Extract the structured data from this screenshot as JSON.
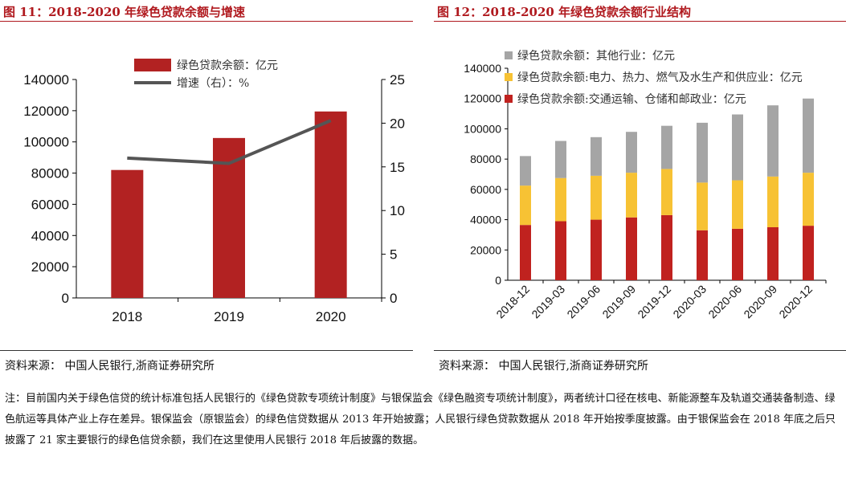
{
  "chart_data": [
    {
      "type": "bar+line",
      "title": "图 11：2018-2020 年绿色贷款余额与增速",
      "categories": [
        "2018",
        "2019",
        "2020"
      ],
      "series": [
        {
          "name": "绿色贷款余额：亿元",
          "kind": "bar",
          "axis": "left",
          "color": "#b22222",
          "values": [
            82000,
            102500,
            119500
          ]
        },
        {
          "name": "增速（右）：%",
          "kind": "line",
          "axis": "right",
          "color": "#555555",
          "values": [
            16,
            15.4,
            20.3
          ]
        }
      ],
      "ylim_left": [
        0,
        140000
      ],
      "yticks_left": [
        "0",
        "20000",
        "40000",
        "60000",
        "80000",
        "100000",
        "120000",
        "140000"
      ],
      "ylim_right": [
        0,
        25
      ],
      "yticks_right": [
        "0",
        "5",
        "10",
        "15",
        "20",
        "25"
      ],
      "legend_position": "top-center",
      "source": "资料来源：  中国人民银行,浙商证券研究所"
    },
    {
      "type": "stacked-bar",
      "title": "图 12：2018-2020 年绿色贷款余额行业结构",
      "categories": [
        "2018-12",
        "2019-03",
        "2019-06",
        "2019-09",
        "2019-12",
        "2020-03",
        "2020-06",
        "2020-09",
        "2020-12"
      ],
      "series": [
        {
          "name": "绿色贷款余额:交通运输、仓储和邮政业：亿元",
          "color": "#c0221f",
          "values": [
            36500,
            39000,
            40000,
            41500,
            43000,
            33000,
            34000,
            35000,
            36000
          ]
        },
        {
          "name": "绿色贷款余额:电力、热力、燃气及水生产和供应业：亿元",
          "color": "#f7c234",
          "values": [
            26000,
            28500,
            29000,
            29500,
            30500,
            31500,
            32000,
            33500,
            35000
          ]
        },
        {
          "name": "绿色贷款余额：其他行业：亿元",
          "color": "#a5a5a5",
          "values": [
            19500,
            24500,
            25500,
            27000,
            28500,
            39500,
            43500,
            47000,
            49000
          ]
        }
      ],
      "ylim": [
        0,
        140000
      ],
      "yticks": [
        "0",
        "20000",
        "40000",
        "60000",
        "80000",
        "100000",
        "120000",
        "140000"
      ],
      "legend_position": "top-left",
      "source": "资料来源：  中国人民银行,浙商证券研究所"
    }
  ],
  "note": "注：目前国内关于绿色信贷的统计标准包括人民银行的《绿色贷款专项统计制度》与银保监会《绿色融资专项统计制度》，两者统计口径在核电、新能源整车及轨道交通装备制造、绿色航运等具体产业上存在差异。银保监会（原银监会）的绿色信贷数据从 2013 年开始披露；人民银行绿色贷款数据从 2018 年开始按季度披露。由于银保监会在 2018 年底之后只披露了 21 家主要银行的绿色信贷余额，我们在这里使用人民银行 2018 年后披露的数据。"
}
